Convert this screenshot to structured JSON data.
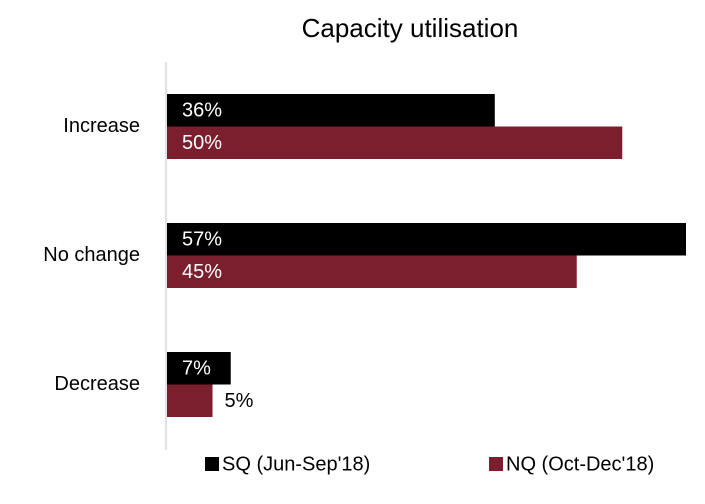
{
  "chart_data": {
    "type": "bar",
    "orientation": "horizontal",
    "title": "Capacity utilisation",
    "categories": [
      "Increase",
      "No change",
      "Decrease"
    ],
    "series": [
      {
        "name": "SQ (Jun-Sep'18)",
        "color": "#000000",
        "values": [
          36,
          57,
          7
        ],
        "value_labels": [
          "36%",
          "57%",
          "7%"
        ]
      },
      {
        "name": "NQ (Oct-Dec'18)",
        "color": "#7b1f2e",
        "values": [
          50,
          45,
          5
        ],
        "value_labels": [
          "50%",
          "45%",
          "5%"
        ]
      }
    ],
    "legend": "bottom"
  }
}
